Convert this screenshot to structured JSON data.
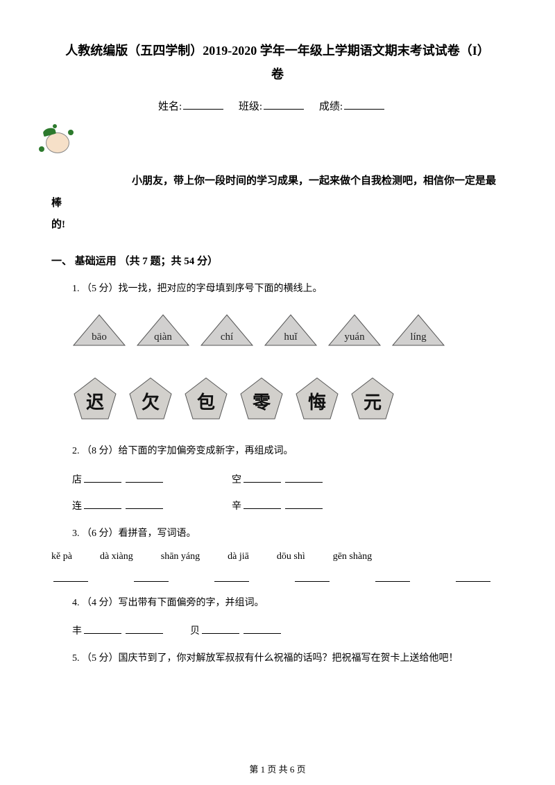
{
  "title_line1": "人教统编版（五四学制）2019-2020 学年一年级上学期语文期末考试试卷（I）",
  "title_line2": "卷",
  "meta": {
    "name_label": "姓名:",
    "class_label": "班级:",
    "score_label": "成绩:"
  },
  "intro": {
    "line1": "小朋友，带上你一段时间的学习成果，一起来做个自我检测吧，相信你一定是最棒",
    "line2": "的!"
  },
  "section1": "一、 基础运用 （共 7 题；共 54 分）",
  "q1": {
    "text": "1. （5 分）找一找，把对应的字母填到序号下面的横线上。",
    "triangles": [
      "bāo",
      "qiàn",
      "chí",
      "huǐ",
      "yuán",
      "líng"
    ],
    "pentagons": [
      "迟",
      "欠",
      "包",
      "零",
      "悔",
      "元"
    ]
  },
  "q2": {
    "text": "2. （8 分）给下面的字加偏旁变成新字，再组成词。",
    "row1": [
      {
        "label": "店",
        "gap": 230
      },
      {
        "label": "空"
      }
    ],
    "row2": [
      {
        "label": "连",
        "gap": 230
      },
      {
        "label": "辛"
      }
    ]
  },
  "q3": {
    "text": "3. （6 分）看拼音，写词语。",
    "pinyin": [
      "kě pà",
      "dà xiàng",
      "shān yáng",
      "dà jiā",
      "dōu shì",
      "gēn shàng"
    ]
  },
  "q4": {
    "text": "4. （4 分）写出带有下面偏旁的字，并组词。",
    "row": [
      {
        "label": "丰",
        "gap": 170
      },
      {
        "label": "贝"
      }
    ]
  },
  "q5": {
    "text": "5. （5 分）国庆节到了，你对解放军叔叔有什么祝福的话吗？把祝福写在贺卡上送给他吧！"
  },
  "footer": "第 1 页 共 6 页",
  "svg": {
    "tri_fill": "#d2d0cc",
    "tri_stroke": "#555",
    "pent_fill": "#d2d0cc",
    "pent_stroke": "#555"
  }
}
